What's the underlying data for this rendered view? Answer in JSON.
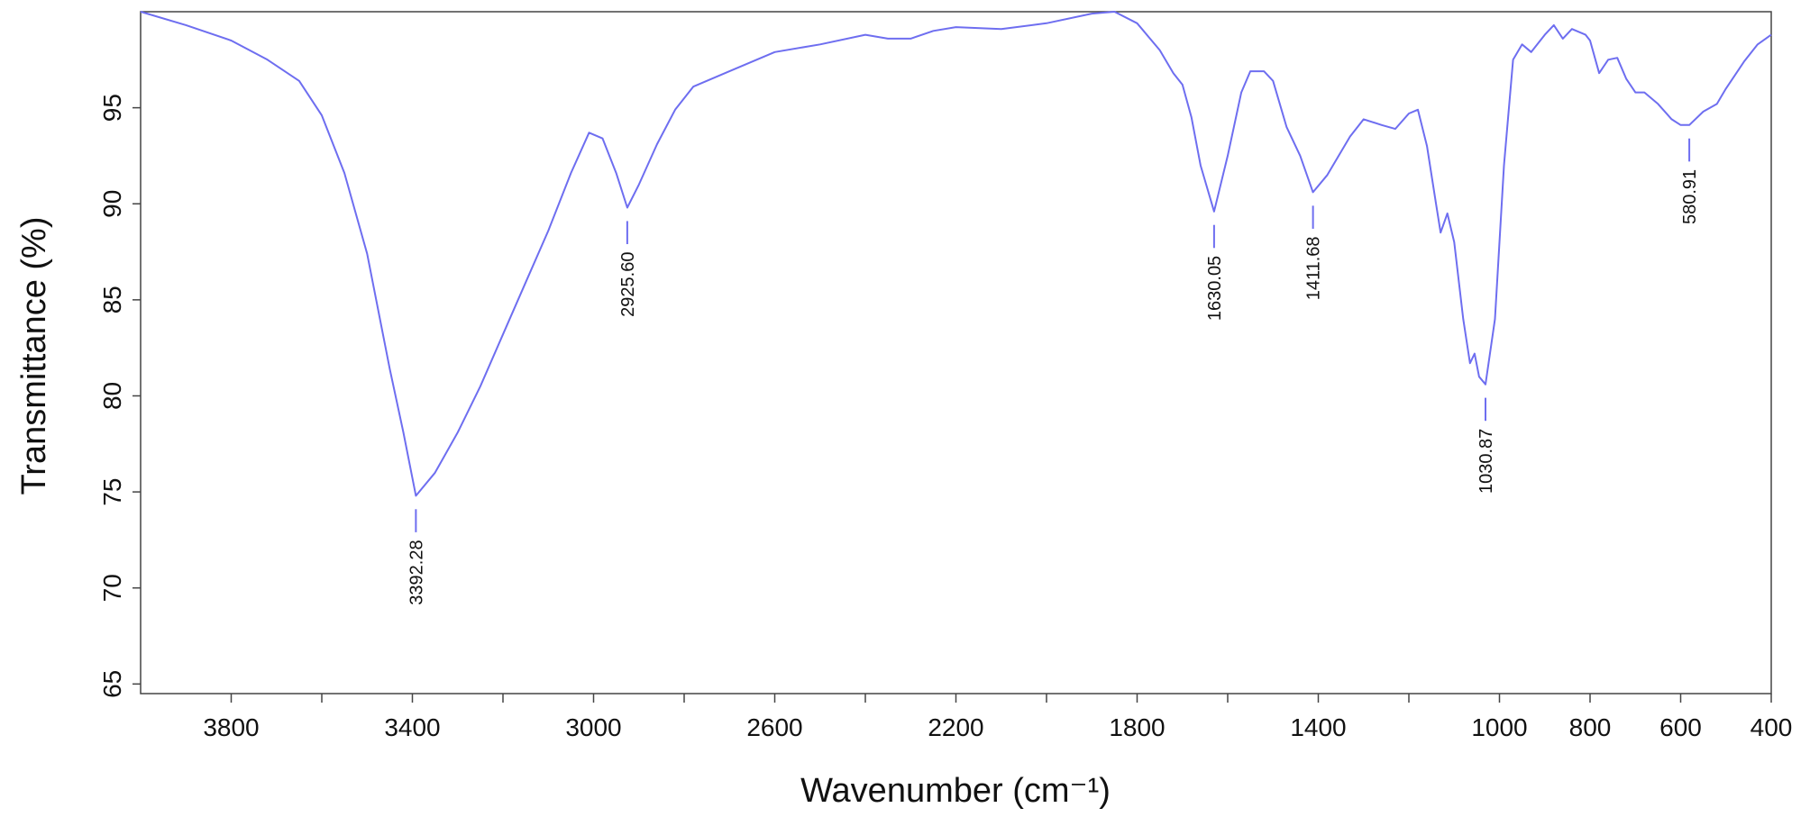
{
  "chart_data": {
    "type": "line",
    "xlabel": "Wavenumber (cm⁻¹)",
    "ylabel": "Transmittance (%)",
    "color": "#6e6ef0",
    "x": [
      4000,
      3900,
      3800,
      3720,
      3650,
      3600,
      3550,
      3500,
      3450,
      3420,
      3392.28,
      3350,
      3300,
      3250,
      3200,
      3150,
      3100,
      3050,
      3010,
      2980,
      2950,
      2925.6,
      2900,
      2860,
      2820,
      2780,
      2700,
      2600,
      2500,
      2400,
      2350,
      2300,
      2250,
      2200,
      2100,
      2000,
      1900,
      1850,
      1800,
      1750,
      1720,
      1700,
      1680,
      1660,
      1630.05,
      1600,
      1570,
      1550,
      1520,
      1500,
      1470,
      1440,
      1411.68,
      1380,
      1330,
      1300,
      1260,
      1230,
      1200,
      1180,
      1160,
      1140,
      1130,
      1115,
      1100,
      1080,
      1065,
      1055,
      1045,
      1030.87,
      1010,
      990,
      970,
      950,
      930,
      900,
      880,
      860,
      840,
      810,
      800,
      780,
      760,
      740,
      720,
      700,
      680,
      650,
      620,
      600,
      580.91,
      550,
      520,
      500,
      460,
      430,
      400
    ],
    "values": [
      100,
      99.3,
      98.5,
      97.5,
      96.4,
      94.6,
      91.6,
      87.4,
      81.4,
      78.1,
      74.8,
      76,
      78.1,
      80.5,
      83.2,
      85.9,
      88.6,
      91.6,
      93.7,
      93.4,
      91.6,
      89.8,
      91,
      93.1,
      94.9,
      96.1,
      96.9,
      97.9,
      98.3,
      98.8,
      98.6,
      98.6,
      99,
      99.2,
      99.1,
      99.4,
      99.9,
      100,
      99.4,
      98,
      96.8,
      96.2,
      94.5,
      92,
      89.6,
      92.5,
      95.8,
      96.9,
      96.9,
      96.4,
      94,
      92.5,
      90.6,
      91.5,
      93.5,
      94.4,
      94.1,
      93.9,
      94.7,
      94.9,
      93,
      90,
      88.5,
      89.5,
      88,
      84,
      81.7,
      82.2,
      81,
      80.6,
      84,
      92,
      97.5,
      98.3,
      97.9,
      98.8,
      99.3,
      98.6,
      99.1,
      98.8,
      98.5,
      96.8,
      97.5,
      97.6,
      96.5,
      95.8,
      95.8,
      95.2,
      94.4,
      94.1,
      94.1,
      94.8,
      95.2,
      96,
      97.4,
      98.3,
      98.8
    ],
    "peaks": [
      {
        "x": 3392.28,
        "y": 74.8,
        "label": "3392.28"
      },
      {
        "x": 2925.6,
        "y": 89.8,
        "label": "2925.60"
      },
      {
        "x": 1630.05,
        "y": 89.6,
        "label": "1630.05"
      },
      {
        "x": 1411.68,
        "y": 90.6,
        "label": "1411.68"
      },
      {
        "x": 1030.87,
        "y": 80.6,
        "label": "1030.87"
      },
      {
        "x": 580.91,
        "y": 94.1,
        "label": "580.91"
      }
    ],
    "xlim": [
      4000,
      400
    ],
    "ylim": [
      64.5,
      100
    ],
    "xticks": [
      3800,
      3400,
      3000,
      2600,
      2200,
      1800,
      1400,
      1000,
      800,
      600,
      400
    ],
    "xminorticks": [
      3600,
      3200,
      2800,
      2400,
      2000,
      1600,
      1200
    ],
    "yticks": [
      65,
      70,
      75,
      80,
      85,
      90,
      95
    ]
  }
}
